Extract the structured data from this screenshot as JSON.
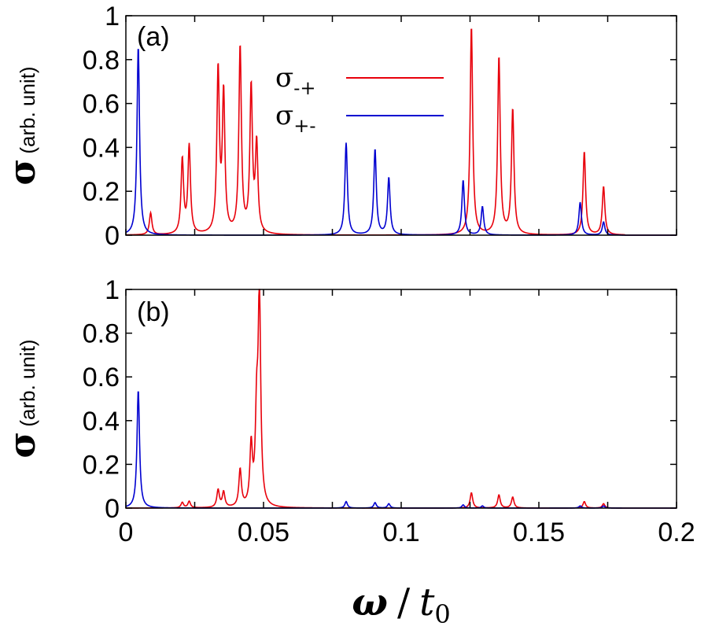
{
  "chart_data": [
    {
      "type": "line",
      "panel_label": "(a)",
      "ylabel_symbol": "σ",
      "ylabel_unit": "(arb. unit)",
      "xlim": [
        0,
        0.2
      ],
      "ylim": [
        0,
        1
      ],
      "yticks": [
        "0",
        "0.2",
        "0.4",
        "0.6",
        "0.8",
        "1"
      ],
      "legend_position": "top-center",
      "series": [
        {
          "name": "σ-+",
          "name_base": "σ",
          "name_sub": "-+",
          "color": "#e8000b",
          "peaks": [
            [
              0.009,
              0.1
            ],
            [
              0.0205,
              0.34
            ],
            [
              0.023,
              0.4
            ],
            [
              0.0335,
              0.74
            ],
            [
              0.0355,
              0.63
            ],
            [
              0.0415,
              0.85
            ],
            [
              0.0455,
              0.66
            ],
            [
              0.0475,
              0.4
            ],
            [
              0.1255,
              0.95
            ],
            [
              0.1355,
              0.81
            ],
            [
              0.1405,
              0.57
            ],
            [
              0.1665,
              0.38
            ],
            [
              0.1735,
              0.22
            ]
          ]
        },
        {
          "name": "σ+-",
          "name_base": "σ",
          "name_sub": "+-",
          "color": "#0000d0",
          "peaks": [
            [
              0.0045,
              0.86
            ],
            [
              0.08,
              0.42
            ],
            [
              0.0905,
              0.39
            ],
            [
              0.0955,
              0.26
            ],
            [
              0.1225,
              0.25
            ],
            [
              0.1295,
              0.13
            ],
            [
              0.165,
              0.15
            ],
            [
              0.1735,
              0.06
            ]
          ]
        }
      ]
    },
    {
      "type": "line",
      "panel_label": "(b)",
      "ylabel_symbol": "σ",
      "ylabel_unit": "(arb. unit)",
      "xlabel_symbol": "ω",
      "xlabel_sep": "/",
      "xlabel_t": "t",
      "xlabel_sub": "0",
      "xlim": [
        0,
        0.2
      ],
      "ylim": [
        0,
        1
      ],
      "yticks": [
        "0",
        "0.2",
        "0.4",
        "0.6",
        "0.8",
        "1"
      ],
      "xticks": [
        "0",
        "0.05",
        "0.1",
        "0.15",
        "0.2"
      ],
      "series": [
        {
          "name": "σ-+",
          "color": "#e8000b",
          "peaks": [
            [
              0.0205,
              0.025
            ],
            [
              0.023,
              0.03
            ],
            [
              0.0335,
              0.08
            ],
            [
              0.0355,
              0.07
            ],
            [
              0.0415,
              0.17
            ],
            [
              0.0455,
              0.27
            ],
            [
              0.0475,
              0.38
            ],
            [
              0.0485,
              0.96
            ],
            [
              0.1255,
              0.07
            ],
            [
              0.1355,
              0.06
            ],
            [
              0.1405,
              0.05
            ],
            [
              0.1665,
              0.03
            ],
            [
              0.1735,
              0.02
            ]
          ]
        },
        {
          "name": "σ+-",
          "color": "#0000d0",
          "peaks": [
            [
              0.0045,
              0.54
            ],
            [
              0.08,
              0.03
            ],
            [
              0.0905,
              0.025
            ],
            [
              0.0955,
              0.02
            ],
            [
              0.1225,
              0.015
            ],
            [
              0.1295,
              0.01
            ],
            [
              0.165,
              0.01
            ],
            [
              0.1735,
              0.01
            ]
          ]
        }
      ]
    }
  ]
}
